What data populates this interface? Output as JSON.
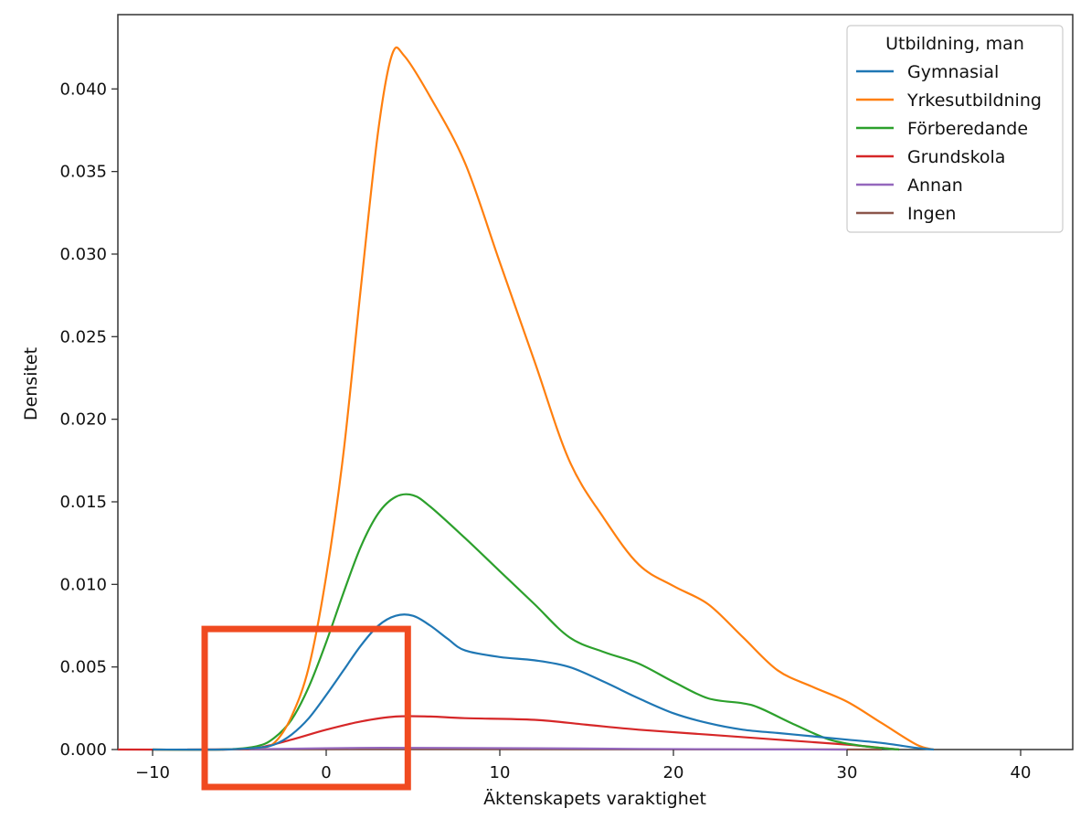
{
  "chart_data": {
    "type": "line",
    "title": "",
    "xlabel": "Äktenskapets varaktighet",
    "ylabel": "Densitet",
    "xlim": [
      -12,
      43
    ],
    "ylim": [
      0,
      0.0445
    ],
    "x_ticks": [
      -10,
      0,
      10,
      20,
      30,
      40
    ],
    "x_tick_labels": [
      "−10",
      "0",
      "10",
      "20",
      "30",
      "40"
    ],
    "y_ticks": [
      0,
      0.005,
      0.01,
      0.015,
      0.02,
      0.025,
      0.03,
      0.035,
      0.04
    ],
    "y_tick_labels": [
      "0.000",
      "0.005",
      "0.010",
      "0.015",
      "0.020",
      "0.025",
      "0.030",
      "0.035",
      "0.040"
    ],
    "grid": false,
    "legend": {
      "title": "Utbildning, man",
      "placement": "top-right"
    },
    "series": [
      {
        "name": "Gymnasial",
        "color": "#1f77b4",
        "points": [
          [
            -10,
            0
          ],
          [
            -6,
            0
          ],
          [
            -4,
            0.0001
          ],
          [
            -3,
            0.0003
          ],
          [
            -2,
            0.0009
          ],
          [
            -1,
            0.0019
          ],
          [
            0,
            0.0033
          ],
          [
            1,
            0.0048
          ],
          [
            2,
            0.0063
          ],
          [
            3,
            0.0075
          ],
          [
            4,
            0.0081
          ],
          [
            5,
            0.0081
          ],
          [
            6,
            0.0075
          ],
          [
            7,
            0.0067
          ],
          [
            8,
            0.006
          ],
          [
            10,
            0.0056
          ],
          [
            12,
            0.0054
          ],
          [
            14,
            0.005
          ],
          [
            16,
            0.0041
          ],
          [
            18,
            0.0031
          ],
          [
            20,
            0.0022
          ],
          [
            22,
            0.0016
          ],
          [
            24,
            0.0012
          ],
          [
            26,
            0.001
          ],
          [
            28,
            0.0008
          ],
          [
            30,
            0.0006
          ],
          [
            32,
            0.0004
          ],
          [
            34,
            0.0001
          ],
          [
            35,
            0
          ]
        ]
      },
      {
        "name": "Yrkesutbildning",
        "color": "#ff7f0e",
        "points": [
          [
            -10,
            0
          ],
          [
            -6,
            0
          ],
          [
            -4,
            0.0001
          ],
          [
            -3,
            0.0004
          ],
          [
            -2,
            0.002
          ],
          [
            -1,
            0.005
          ],
          [
            0,
            0.0105
          ],
          [
            1,
            0.018
          ],
          [
            2,
            0.028
          ],
          [
            3,
            0.0375
          ],
          [
            3.8,
            0.0421
          ],
          [
            4.5,
            0.042
          ],
          [
            6,
            0.0395
          ],
          [
            8,
            0.0355
          ],
          [
            10,
            0.0295
          ],
          [
            12,
            0.0235
          ],
          [
            14,
            0.0175
          ],
          [
            16,
            0.014
          ],
          [
            18,
            0.0112
          ],
          [
            20,
            0.0099
          ],
          [
            22,
            0.0088
          ],
          [
            24,
            0.0068
          ],
          [
            26,
            0.0048
          ],
          [
            28,
            0.0038
          ],
          [
            30,
            0.0029
          ],
          [
            32,
            0.0016
          ],
          [
            34,
            0.0003
          ],
          [
            35,
            0
          ]
        ]
      },
      {
        "name": "Förberedande",
        "color": "#2ca02c",
        "points": [
          [
            -10,
            0
          ],
          [
            -6,
            0
          ],
          [
            -4,
            0.0002
          ],
          [
            -3,
            0.0007
          ],
          [
            -2,
            0.0018
          ],
          [
            -1,
            0.0038
          ],
          [
            0,
            0.0065
          ],
          [
            1,
            0.0095
          ],
          [
            2,
            0.0123
          ],
          [
            3,
            0.0143
          ],
          [
            4,
            0.0153
          ],
          [
            5,
            0.0154
          ],
          [
            6,
            0.0147
          ],
          [
            8,
            0.0128
          ],
          [
            10,
            0.0108
          ],
          [
            12,
            0.0088
          ],
          [
            14,
            0.0068
          ],
          [
            16,
            0.0059
          ],
          [
            18,
            0.0052
          ],
          [
            20,
            0.0041
          ],
          [
            22,
            0.0031
          ],
          [
            24,
            0.0028
          ],
          [
            25,
            0.0025
          ],
          [
            27,
            0.0015
          ],
          [
            29,
            0.0006
          ],
          [
            31,
            0.0002
          ],
          [
            33,
            0
          ]
        ]
      },
      {
        "name": "Grundskola",
        "color": "#d62728",
        "points": [
          [
            -12,
            0
          ],
          [
            -6,
            0
          ],
          [
            -4,
            0.0001
          ],
          [
            -2,
            0.0006
          ],
          [
            0,
            0.0012
          ],
          [
            2,
            0.0017
          ],
          [
            4,
            0.002
          ],
          [
            6,
            0.002
          ],
          [
            8,
            0.0019
          ],
          [
            12,
            0.0018
          ],
          [
            15,
            0.0015
          ],
          [
            18,
            0.0012
          ],
          [
            22,
            0.0009
          ],
          [
            26,
            0.0006
          ],
          [
            30,
            0.0003
          ],
          [
            32,
            0.0001
          ],
          [
            33,
            0
          ]
        ]
      },
      {
        "name": "Annan",
        "color": "#9467bd",
        "points": [
          [
            -6,
            0
          ],
          [
            -2,
            5e-05
          ],
          [
            2,
            0.0001
          ],
          [
            6,
            0.0001
          ],
          [
            12,
            8e-05
          ],
          [
            18,
            4e-05
          ],
          [
            24,
            1e-05
          ],
          [
            30,
            0
          ]
        ]
      },
      {
        "name": "Ingen",
        "color": "#8c564b",
        "points": [
          [
            -8,
            0
          ],
          [
            0,
            2e-05
          ],
          [
            6,
            3e-05
          ],
          [
            14,
            2e-05
          ],
          [
            24,
            1e-05
          ],
          [
            32,
            0
          ]
        ]
      }
    ]
  },
  "annotation": {
    "color": "#f04a20",
    "range_x": [
      -7,
      4.7
    ],
    "range_y": [
      0,
      0.0073
    ]
  }
}
